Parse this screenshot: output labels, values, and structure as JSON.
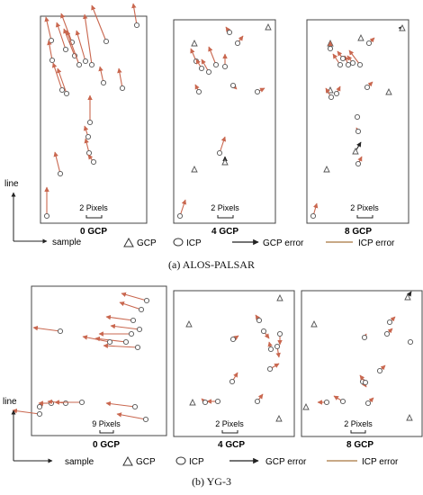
{
  "panel_a": {
    "caption": "(a) ALOS-PALSAR",
    "axis_x": "sample",
    "axis_y": "line",
    "subplots": [
      {
        "label": "0 GCP",
        "scale": "2 Pixels"
      },
      {
        "label": "4 GCP",
        "scale": "2 Pixels"
      },
      {
        "label": "8 GCP",
        "scale": "2 Pixels"
      }
    ],
    "legend": {
      "gcp": "GCP",
      "icp": "ICP",
      "gcp_error": "GCP error",
      "icp_error": "ICP error"
    }
  },
  "panel_b": {
    "caption": "(b) YG-3",
    "axis_x": "sample",
    "axis_y": "line",
    "subplots": [
      {
        "label": "0 GCP",
        "scale": "9 Pixels"
      },
      {
        "label": "4 GCP",
        "scale": "2 Pixels"
      },
      {
        "label": "8 GCP",
        "scale": "2 Pixels"
      }
    ],
    "legend": {
      "gcp": "GCP",
      "icp": "ICP",
      "gcp_error": "GCP error",
      "icp_error": "ICP error"
    }
  },
  "colors": {
    "icp_error": "#c9674f",
    "gcp_error": "#222222",
    "marker": "#555555",
    "frame": "#444444"
  }
}
